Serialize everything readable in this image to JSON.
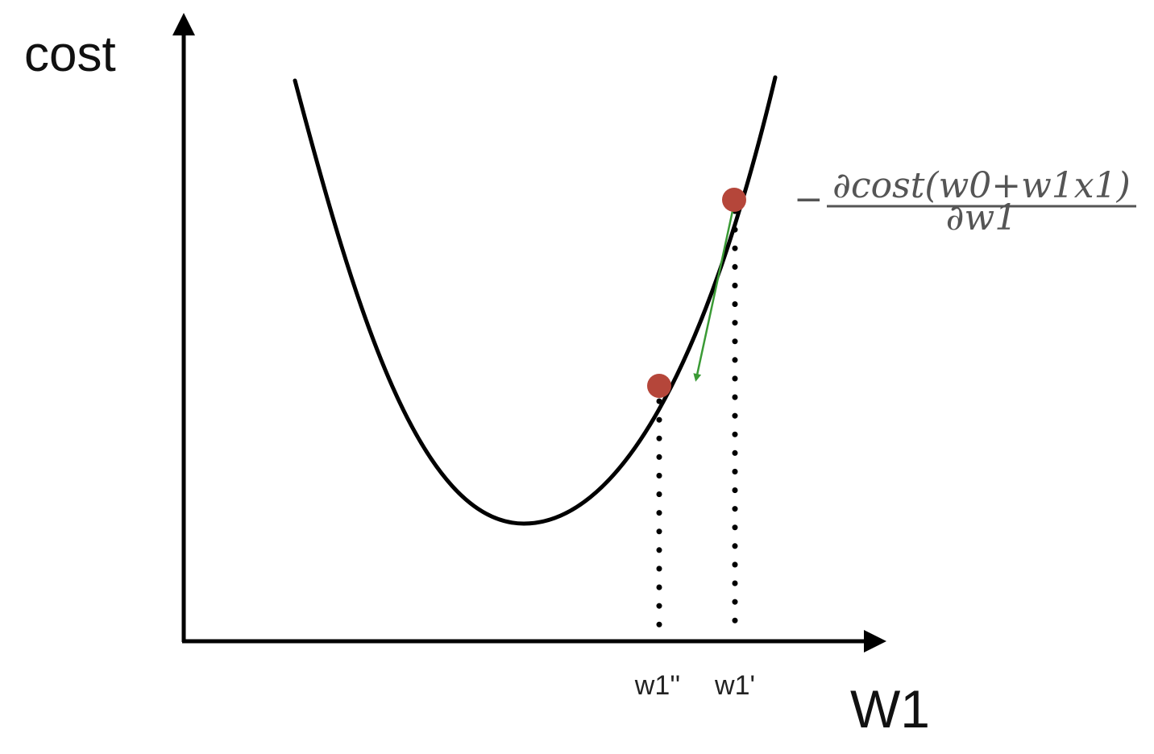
{
  "axes": {
    "y_label": "cost",
    "x_label": "W1"
  },
  "ticks": {
    "w1_next": "w1''",
    "w1_current": "w1'"
  },
  "formula": {
    "sign": "−",
    "numerator": "∂cost(w0+w1x1)",
    "denominator": "∂w1"
  },
  "colors": {
    "curve": "#000000",
    "point": "#b5463a",
    "gradient_arrow": "#3a9a35",
    "formula_text": "#555555"
  }
}
